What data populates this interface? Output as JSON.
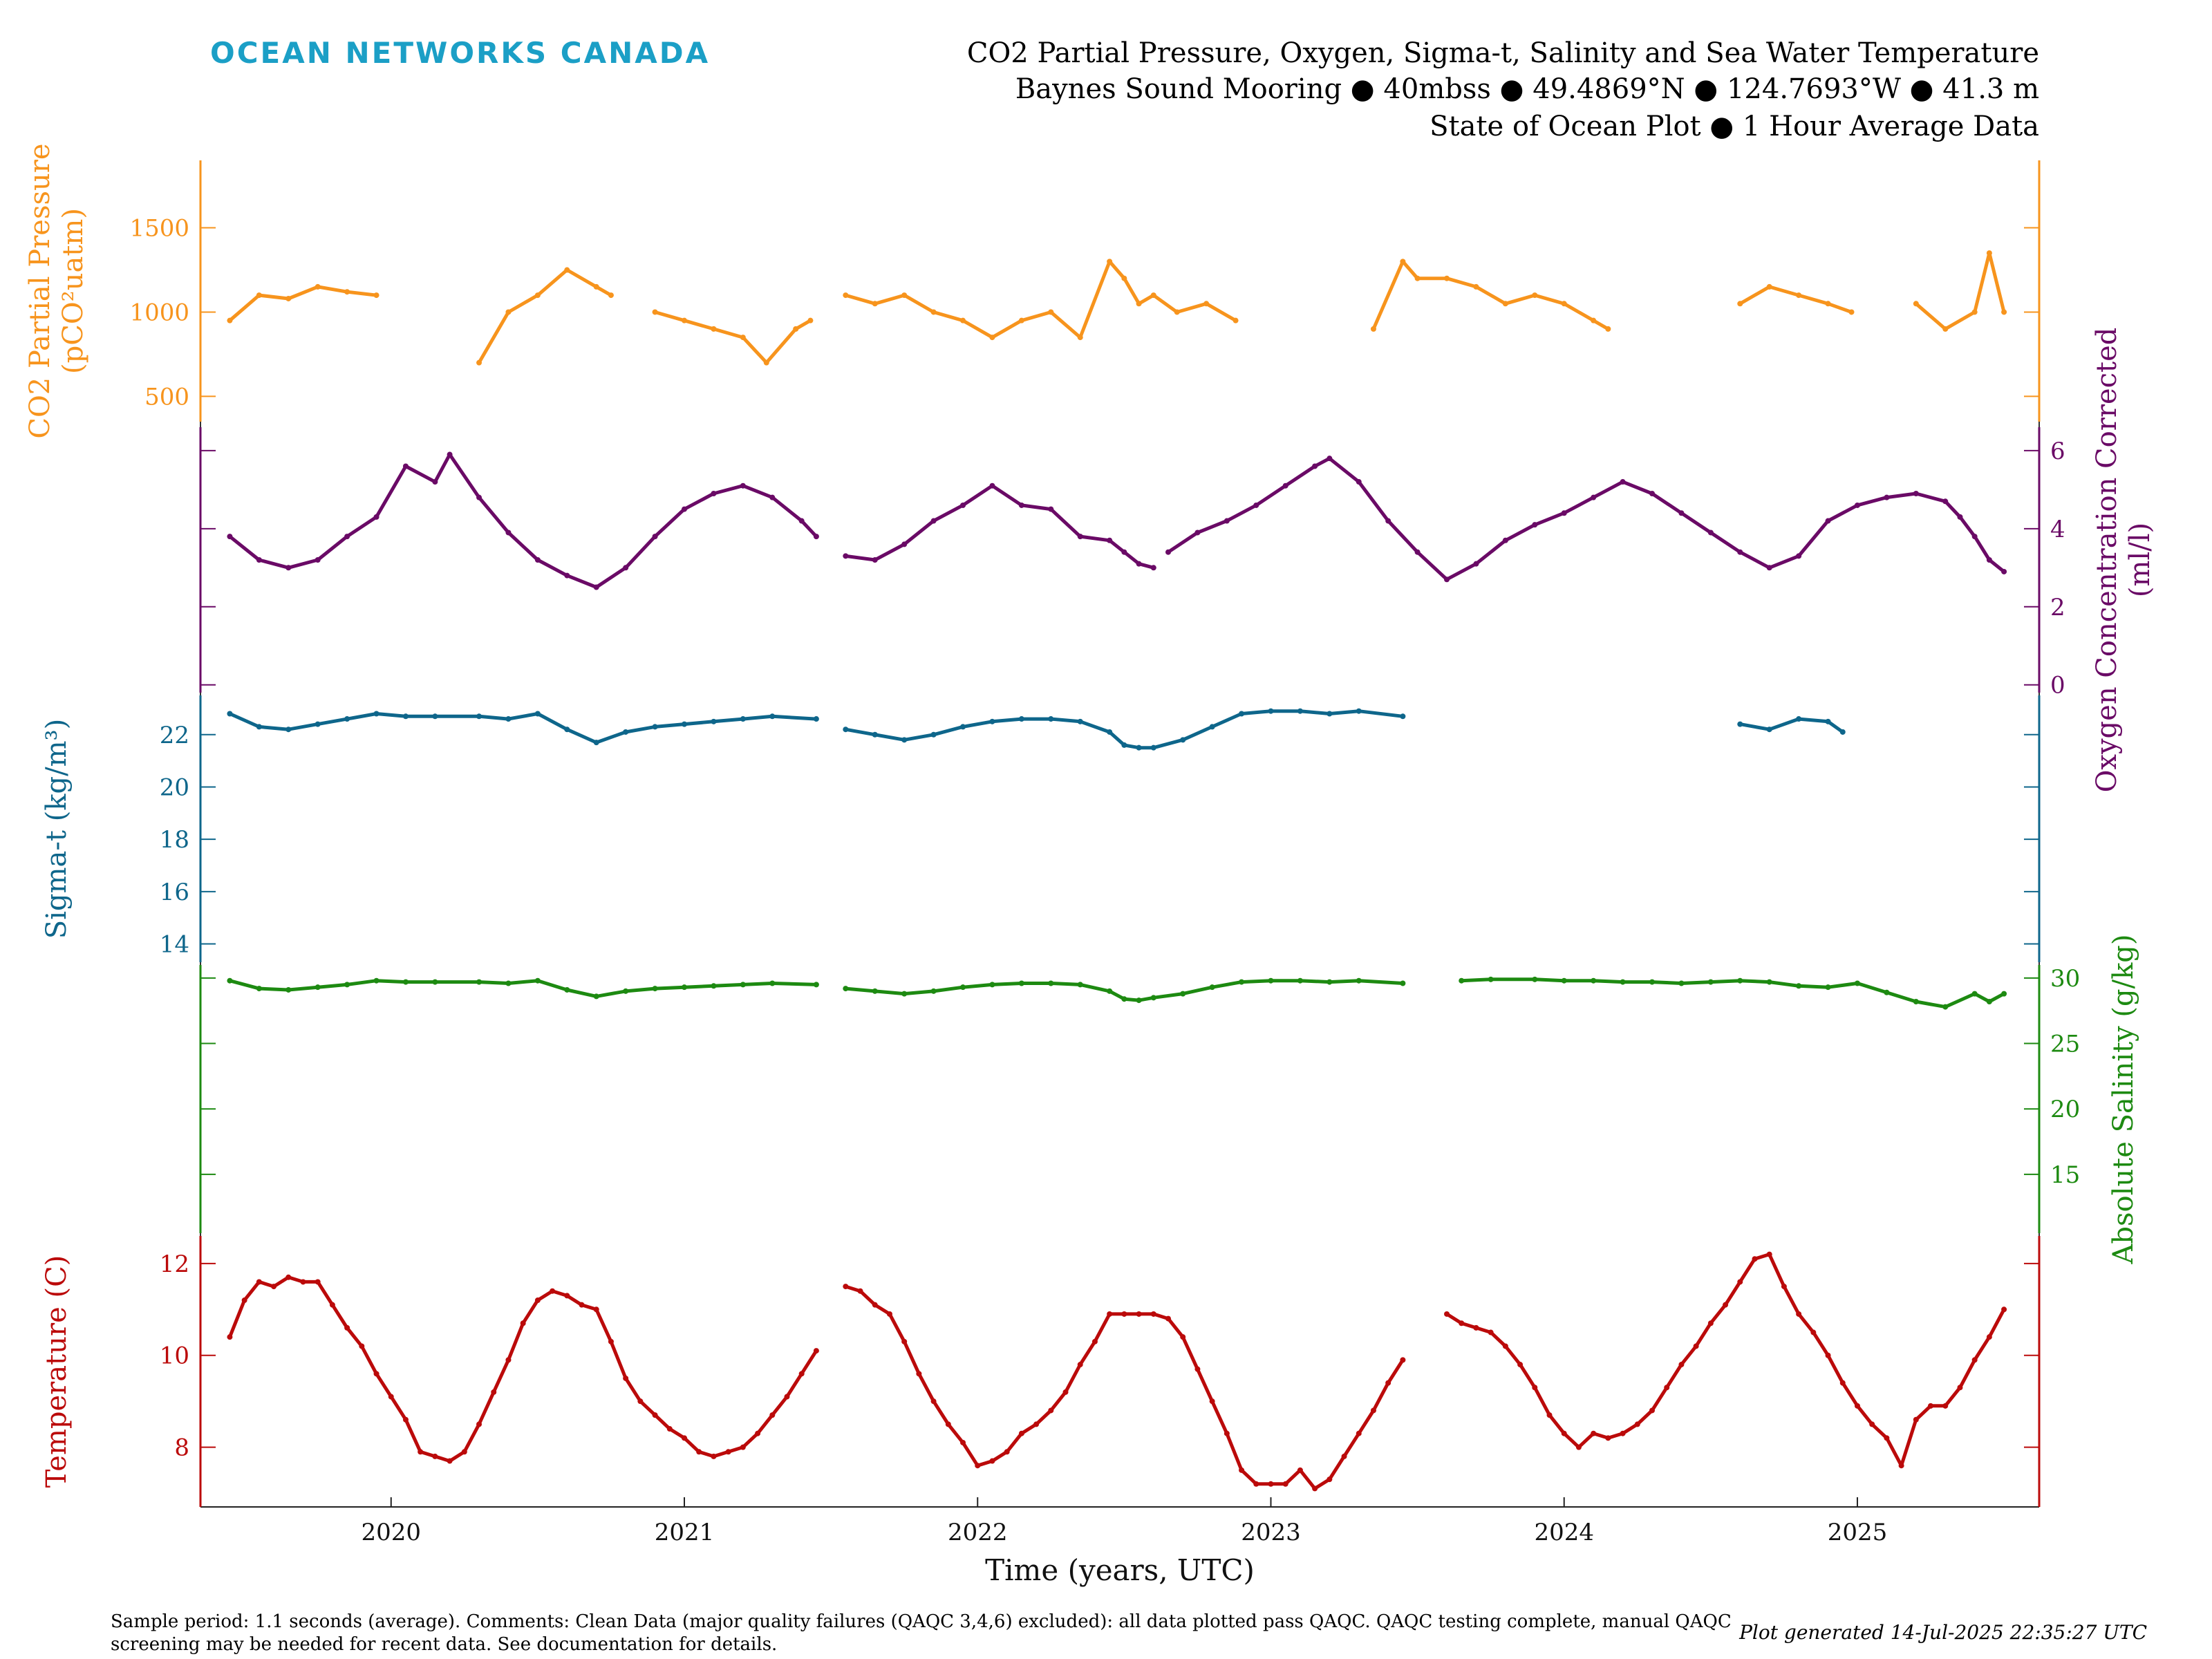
{
  "brand": "OCEAN NETWORKS CANADA",
  "title_lines": [
    "CO2 Partial Pressure, Oxygen, Sigma-t, Salinity and Sea Water Temperature",
    "Baynes Sound Mooring ● 40mbss ● 49.4869°N ● 124.7693°W ● 41.3 m",
    "State of Ocean Plot ● 1 Hour Average Data"
  ],
  "footnote": "Sample period: 1.1 seconds (average). Comments: Clean Data (major quality failures (QAQC 3,4,6) excluded): all data plotted pass QAQC. QAQC testing complete, manual QAQC screening may be needed for recent data. See documentation for details.",
  "generated": "Plot generated 14-Jul-2025 22:35:27 UTC",
  "chart_data": {
    "type": "line",
    "xlabel": "Time (years, UTC)",
    "x_ticks": [
      "2020",
      "2021",
      "2022",
      "2023",
      "2024",
      "2025"
    ],
    "xlim": [
      2019.35,
      2025.62
    ],
    "grid": false,
    "series": [
      {
        "name": "CO2 Partial Pressure",
        "ylabel": "CO2 Partial Pressure (pCO²uatm)",
        "ylabel_lines": [
          "CO2 Partial Pressure",
          "(pCO²uatm)"
        ],
        "axis": "left",
        "color": "#f7941d",
        "ylim": [
          350,
          1900
        ],
        "yticks": [
          500,
          1000,
          1500
        ],
        "x": [
          2019.45,
          2019.55,
          2019.65,
          2019.75,
          2019.85,
          2019.95,
          2020.3,
          2020.4,
          2020.5,
          2020.6,
          2020.7,
          2020.75,
          2020.9,
          2021.0,
          2021.1,
          2021.2,
          2021.28,
          2021.38,
          2021.43,
          2021.55,
          2021.65,
          2021.75,
          2021.85,
          2021.95,
          2022.05,
          2022.15,
          2022.25,
          2022.35,
          2022.45,
          2022.5,
          2022.55,
          2022.6,
          2022.68,
          2022.78,
          2022.88,
          2023.35,
          2023.45,
          2023.5,
          2023.6,
          2023.7,
          2023.8,
          2023.9,
          2024.0,
          2024.1,
          2024.15,
          2024.6,
          2024.7,
          2024.8,
          2024.9,
          2024.98,
          2025.2,
          2025.3,
          2025.4,
          2025.45,
          2025.5
        ],
        "y": [
          950,
          1100,
          1080,
          1150,
          1120,
          1100,
          700,
          1000,
          1100,
          1250,
          1150,
          1100,
          1000,
          950,
          900,
          850,
          700,
          900,
          950,
          1100,
          1050,
          1100,
          1000,
          950,
          850,
          950,
          1000,
          850,
          1300,
          1200,
          1050,
          1100,
          1000,
          1050,
          950,
          900,
          1300,
          1200,
          1200,
          1150,
          1050,
          1100,
          1050,
          950,
          900,
          1050,
          1150,
          1100,
          1050,
          1000,
          1050,
          900,
          1000,
          1350,
          1000
        ],
        "breaks_after": [
          5,
          11,
          18,
          34,
          44,
          49
        ]
      },
      {
        "name": "Oxygen Concentration Corrected",
        "ylabel": "Oxygen Concentration Corrected (ml/l)",
        "ylabel_lines": [
          "Oxygen Concentration Corrected",
          "(ml/l)"
        ],
        "axis": "right",
        "color": "#6a0a66",
        "ylim": [
          -0.2,
          6.6
        ],
        "yticks": [
          0,
          2,
          4,
          6
        ],
        "x": [
          2019.45,
          2019.55,
          2019.65,
          2019.75,
          2019.85,
          2019.95,
          2020.05,
          2020.15,
          2020.2,
          2020.3,
          2020.4,
          2020.5,
          2020.6,
          2020.7,
          2020.8,
          2020.9,
          2021.0,
          2021.1,
          2021.2,
          2021.3,
          2021.4,
          2021.45,
          2021.55,
          2021.65,
          2021.75,
          2021.85,
          2021.95,
          2022.05,
          2022.15,
          2022.25,
          2022.35,
          2022.45,
          2022.5,
          2022.55,
          2022.6,
          2022.65,
          2022.75,
          2022.85,
          2022.95,
          2023.05,
          2023.15,
          2023.2,
          2023.3,
          2023.4,
          2023.5,
          2023.6,
          2023.7,
          2023.8,
          2023.9,
          2024.0,
          2024.1,
          2024.2,
          2024.3,
          2024.4,
          2024.5,
          2024.6,
          2024.7,
          2024.8,
          2024.9,
          2025.0,
          2025.1,
          2025.2,
          2025.3,
          2025.35,
          2025.4,
          2025.45,
          2025.5
        ],
        "y": [
          3.8,
          3.2,
          3.0,
          3.2,
          3.8,
          4.3,
          5.6,
          5.2,
          5.9,
          4.8,
          3.9,
          3.2,
          2.8,
          2.5,
          3.0,
          3.8,
          4.5,
          4.9,
          5.1,
          4.8,
          4.2,
          3.8,
          3.3,
          3.2,
          3.6,
          4.2,
          4.6,
          5.1,
          4.6,
          4.5,
          3.8,
          3.7,
          3.4,
          3.1,
          3.0,
          3.4,
          3.9,
          4.2,
          4.6,
          5.1,
          5.6,
          5.8,
          5.2,
          4.2,
          3.4,
          2.7,
          3.1,
          3.7,
          4.1,
          4.4,
          4.8,
          5.2,
          4.9,
          4.4,
          3.9,
          3.4,
          3.0,
          3.3,
          4.2,
          4.6,
          4.8,
          4.9,
          4.7,
          4.3,
          3.8,
          3.2,
          2.9
        ],
        "breaks_after": [
          21,
          34
        ]
      },
      {
        "name": "Sigma-t",
        "ylabel": "Sigma-t (kg/m³)",
        "ylabel_lines": [
          "Sigma-t (kg/m³)"
        ],
        "axis": "left",
        "color": "#0e668b",
        "ylim": [
          13.3,
          23.5
        ],
        "yticks": [
          14,
          16,
          18,
          20,
          22
        ],
        "x": [
          2019.45,
          2019.55,
          2019.65,
          2019.75,
          2019.85,
          2019.95,
          2020.05,
          2020.15,
          2020.3,
          2020.4,
          2020.5,
          2020.6,
          2020.7,
          2020.8,
          2020.9,
          2021.0,
          2021.1,
          2021.2,
          2021.3,
          2021.45,
          2021.55,
          2021.65,
          2021.75,
          2021.85,
          2021.95,
          2022.05,
          2022.15,
          2022.25,
          2022.35,
          2022.45,
          2022.5,
          2022.55,
          2022.6,
          2022.7,
          2022.8,
          2022.9,
          2023.0,
          2023.1,
          2023.2,
          2023.3,
          2023.45,
          2024.6,
          2024.7,
          2024.8,
          2024.9,
          2024.95
        ],
        "y": [
          22.8,
          22.3,
          22.2,
          22.4,
          22.6,
          22.8,
          22.7,
          22.7,
          22.7,
          22.6,
          22.8,
          22.2,
          21.7,
          22.1,
          22.3,
          22.4,
          22.5,
          22.6,
          22.7,
          22.6,
          22.2,
          22.0,
          21.8,
          22.0,
          22.3,
          22.5,
          22.6,
          22.6,
          22.5,
          22.1,
          21.6,
          21.5,
          21.5,
          21.8,
          22.3,
          22.8,
          22.9,
          22.9,
          22.8,
          22.9,
          22.7,
          22.4,
          22.2,
          22.6,
          22.5,
          22.1
        ],
        "breaks_after": [
          19,
          40
        ]
      },
      {
        "name": "Absolute Salinity",
        "ylabel": "Absolute Salinity (g/kg)",
        "ylabel_lines": [
          "Absolute Salinity (g/kg)"
        ],
        "axis": "right",
        "color": "#1d8a11",
        "ylim": [
          10.5,
          31
        ],
        "yticks": [
          15,
          20,
          25,
          30
        ],
        "x": [
          2019.45,
          2019.55,
          2019.65,
          2019.75,
          2019.85,
          2019.95,
          2020.05,
          2020.15,
          2020.3,
          2020.4,
          2020.5,
          2020.6,
          2020.7,
          2020.8,
          2020.9,
          2021.0,
          2021.1,
          2021.2,
          2021.3,
          2021.45,
          2021.55,
          2021.65,
          2021.75,
          2021.85,
          2021.95,
          2022.05,
          2022.15,
          2022.25,
          2022.35,
          2022.45,
          2022.5,
          2022.55,
          2022.6,
          2022.7,
          2022.8,
          2022.9,
          2023.0,
          2023.1,
          2023.2,
          2023.3,
          2023.45,
          2023.65,
          2023.75,
          2023.9,
          2024.0,
          2024.1,
          2024.2,
          2024.3,
          2024.4,
          2024.5,
          2024.6,
          2024.7,
          2024.8,
          2024.9,
          2025.0,
          2025.1,
          2025.2,
          2025.3,
          2025.4,
          2025.45,
          2025.5
        ],
        "y": [
          29.8,
          29.2,
          29.1,
          29.3,
          29.5,
          29.8,
          29.7,
          29.7,
          29.7,
          29.6,
          29.8,
          29.1,
          28.6,
          29.0,
          29.2,
          29.3,
          29.4,
          29.5,
          29.6,
          29.5,
          29.2,
          29.0,
          28.8,
          29.0,
          29.3,
          29.5,
          29.6,
          29.6,
          29.5,
          29.0,
          28.4,
          28.3,
          28.5,
          28.8,
          29.3,
          29.7,
          29.8,
          29.8,
          29.7,
          29.8,
          29.6,
          29.8,
          29.9,
          29.9,
          29.8,
          29.8,
          29.7,
          29.7,
          29.6,
          29.7,
          29.8,
          29.7,
          29.4,
          29.3,
          29.6,
          28.9,
          28.2,
          27.8,
          28.8,
          28.2,
          28.8
        ],
        "breaks_after": [
          19,
          40
        ]
      },
      {
        "name": "Temperature",
        "ylabel": "Temperature (C)",
        "ylabel_lines": [
          "Temperature (C)"
        ],
        "axis": "left",
        "color": "#bb0a0a",
        "ylim": [
          6.7,
          12.6
        ],
        "yticks": [
          8,
          10,
          12
        ],
        "x": [
          2019.45,
          2019.5,
          2019.55,
          2019.6,
          2019.65,
          2019.7,
          2019.75,
          2019.8,
          2019.85,
          2019.9,
          2019.95,
          2020.0,
          2020.05,
          2020.1,
          2020.15,
          2020.2,
          2020.25,
          2020.3,
          2020.35,
          2020.4,
          2020.45,
          2020.5,
          2020.55,
          2020.6,
          2020.65,
          2020.7,
          2020.75,
          2020.8,
          2020.85,
          2020.9,
          2020.95,
          2021.0,
          2021.05,
          2021.1,
          2021.15,
          2021.2,
          2021.25,
          2021.3,
          2021.35,
          2021.4,
          2021.45,
          2021.55,
          2021.6,
          2021.65,
          2021.7,
          2021.75,
          2021.8,
          2021.85,
          2021.9,
          2021.95,
          2022.0,
          2022.05,
          2022.1,
          2022.15,
          2022.2,
          2022.25,
          2022.3,
          2022.35,
          2022.4,
          2022.45,
          2022.5,
          2022.55,
          2022.6,
          2022.65,
          2022.7,
          2022.75,
          2022.8,
          2022.85,
          2022.9,
          2022.95,
          2023.0,
          2023.05,
          2023.1,
          2023.15,
          2023.2,
          2023.25,
          2023.3,
          2023.35,
          2023.4,
          2023.45,
          2023.6,
          2023.65,
          2023.7,
          2023.75,
          2023.8,
          2023.85,
          2023.9,
          2023.95,
          2024.0,
          2024.05,
          2024.1,
          2024.15,
          2024.2,
          2024.25,
          2024.3,
          2024.35,
          2024.4,
          2024.45,
          2024.5,
          2024.55,
          2024.6,
          2024.65,
          2024.7,
          2024.75,
          2024.8,
          2024.85,
          2024.9,
          2024.95,
          2025.0,
          2025.05,
          2025.1,
          2025.15,
          2025.2,
          2025.25,
          2025.3,
          2025.35,
          2025.4,
          2025.45,
          2025.5
        ],
        "y": [
          10.4,
          11.2,
          11.6,
          11.5,
          11.7,
          11.6,
          11.6,
          11.1,
          10.6,
          10.2,
          9.6,
          9.1,
          8.6,
          7.9,
          7.8,
          7.7,
          7.9,
          8.5,
          9.2,
          9.9,
          10.7,
          11.2,
          11.4,
          11.3,
          11.1,
          11.0,
          10.3,
          9.5,
          9.0,
          8.7,
          8.4,
          8.2,
          7.9,
          7.8,
          7.9,
          8.0,
          8.3,
          8.7,
          9.1,
          9.6,
          10.1,
          11.5,
          11.4,
          11.1,
          10.9,
          10.3,
          9.6,
          9.0,
          8.5,
          8.1,
          7.6,
          7.7,
          7.9,
          8.3,
          8.5,
          8.8,
          9.2,
          9.8,
          10.3,
          10.9,
          10.9,
          10.9,
          10.9,
          10.8,
          10.4,
          9.7,
          9.0,
          8.3,
          7.5,
          7.2,
          7.2,
          7.2,
          7.5,
          7.1,
          7.3,
          7.8,
          8.3,
          8.8,
          9.4,
          9.9,
          10.9,
          10.7,
          10.6,
          10.5,
          10.2,
          9.8,
          9.3,
          8.7,
          8.3,
          8.0,
          8.3,
          8.2,
          8.3,
          8.5,
          8.8,
          9.3,
          9.8,
          10.2,
          10.7,
          11.1,
          11.6,
          12.1,
          12.2,
          11.5,
          10.9,
          10.5,
          10.0,
          9.4,
          8.9,
          8.5,
          8.2,
          7.6,
          8.6,
          8.9,
          8.9,
          9.3,
          9.9,
          10.4,
          11.0
        ],
        "breaks_after": [
          40,
          79
        ]
      }
    ]
  }
}
